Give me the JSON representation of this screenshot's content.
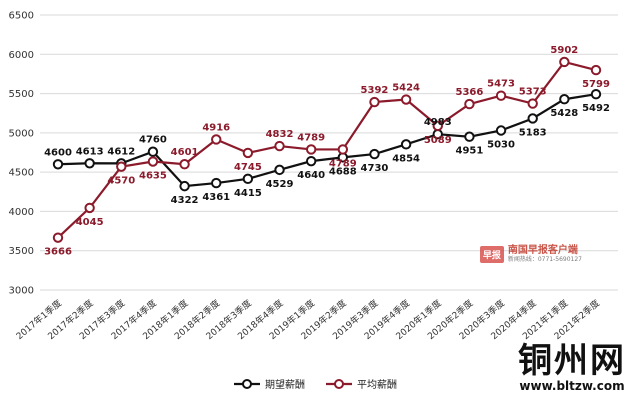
{
  "chart_data": {
    "type": "line",
    "categories": [
      "2017年1季度",
      "2017年2季度",
      "2017年3季度",
      "2017年4季度",
      "2018年1季度",
      "2018年2季度",
      "2018年3季度",
      "2018年4季度",
      "2019年1季度",
      "2019年2季度",
      "2019年3季度",
      "2019年4季度",
      "2020年1季度",
      "2020年2季度",
      "2020年3季度",
      "2020年4季度",
      "2021年1季度",
      "2021年2季度"
    ],
    "series": [
      {
        "name": "期望薪酬",
        "color": "#111111",
        "values": [
          4600,
          4613,
          4612,
          4760,
          4322,
          4361,
          4415,
          4529,
          4640,
          4688,
          4730,
          4854,
          4983,
          4951,
          5030,
          5183,
          5428,
          5492
        ]
      },
      {
        "name": "平均薪酬",
        "color": "#8b1a2b",
        "values": [
          3666,
          4045,
          4570,
          4635,
          4601,
          4916,
          4745,
          4832,
          4789,
          4789,
          5392,
          5424,
          5089,
          5366,
          5473,
          5373,
          5902,
          5799
        ]
      }
    ],
    "yticks": [
      3000,
      3500,
      4000,
      4500,
      5000,
      5500,
      6000,
      6500
    ],
    "ylim": [
      3000,
      6500
    ],
    "grid": true,
    "legend": "bottom-center"
  },
  "watermark": {
    "badge": "早报",
    "name": "南国早报客户端",
    "tel": "新闻热线：0771-5690127"
  },
  "logo": {
    "main": "铜州网",
    "url": "www.bltzw.com"
  }
}
